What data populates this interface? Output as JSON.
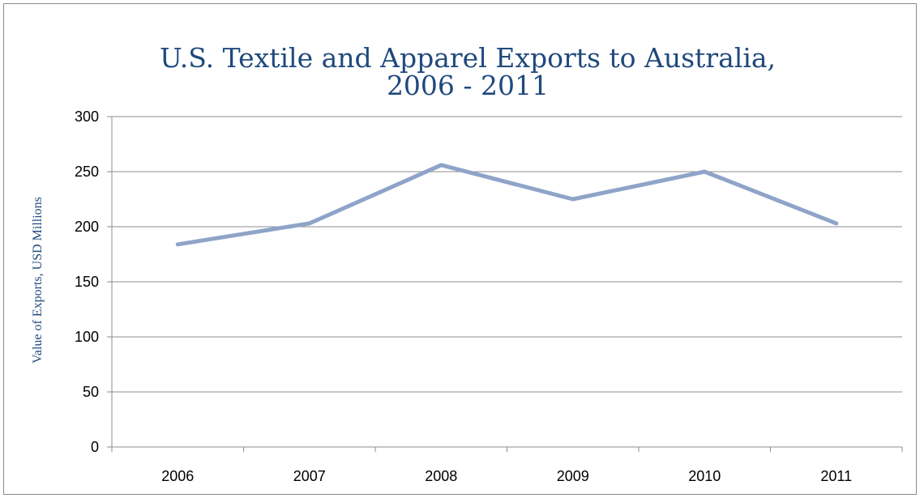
{
  "chart_data": {
    "type": "line",
    "title_lines": [
      "U.S. Textile and Apparel Exports to Australia,",
      "2006 - 2011"
    ],
    "xlabel": "",
    "ylabel": "Value of Exports, USD Millions",
    "categories": [
      "2006",
      "2007",
      "2008",
      "2009",
      "2010",
      "2011"
    ],
    "series": [
      {
        "values": [
          184,
          203,
          256,
          225,
          250,
          203
        ]
      }
    ],
    "ylim": [
      0,
      300
    ],
    "yticks": [
      0,
      50,
      100,
      150,
      200,
      250,
      300
    ],
    "grid": true,
    "legend": "none",
    "line_color": "#8ea4c8",
    "title_color": "#1f497d"
  }
}
